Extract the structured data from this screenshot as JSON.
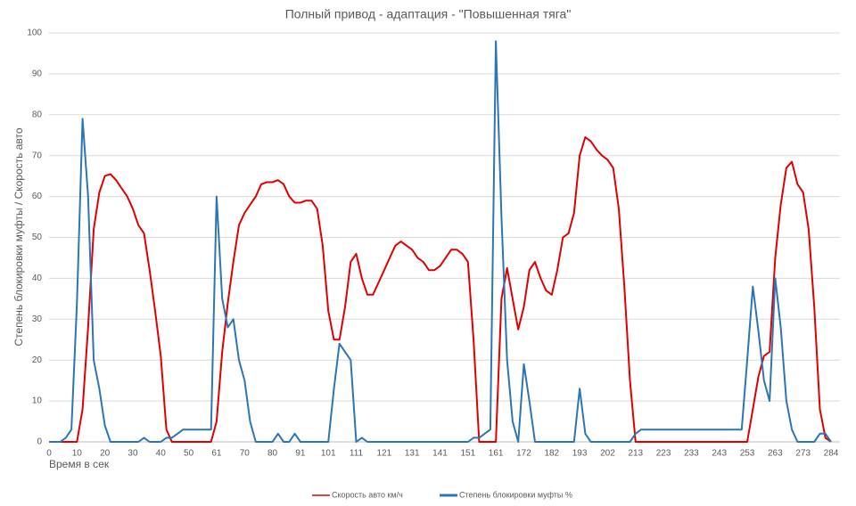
{
  "chart_data": {
    "type": "line",
    "title": "Полный привод - адаптация - \"Повышенная тяга\"",
    "x_label": "Время в сек",
    "y_label": "Степень блокировки муфты / Скорость авто",
    "categories": [
      0,
      null,
      null,
      null,
      null,
      10,
      null,
      null,
      null,
      null,
      20,
      null,
      null,
      null,
      null,
      30,
      null,
      null,
      null,
      null,
      40,
      null,
      null,
      null,
      null,
      50,
      null,
      null,
      null,
      null,
      61,
      null,
      null,
      null,
      null,
      70,
      null,
      null,
      null,
      null,
      80,
      null,
      null,
      null,
      null,
      91,
      null,
      null,
      null,
      null,
      101,
      null,
      null,
      null,
      null,
      111,
      null,
      null,
      null,
      null,
      121,
      null,
      null,
      null,
      null,
      131,
      null,
      null,
      null,
      null,
      141,
      null,
      null,
      null,
      null,
      151,
      null,
      null,
      null,
      null,
      161,
      null,
      null,
      null,
      null,
      172,
      null,
      null,
      null,
      null,
      182,
      null,
      null,
      null,
      null,
      193,
      null,
      null,
      null,
      null,
      202,
      null,
      null,
      null,
      null,
      213,
      null,
      null,
      null,
      null,
      223,
      null,
      null,
      null,
      null,
      233,
      null,
      null,
      null,
      null,
      243,
      null,
      null,
      null,
      null,
      253,
      null,
      null,
      null,
      null,
      263,
      null,
      null,
      null,
      null,
      273,
      null,
      null,
      null,
      null,
      284
    ],
    "series": [
      {
        "name": "Скорость авто км/ч",
        "color": "#e00000",
        "values": [
          0,
          0,
          0,
          0,
          0,
          0,
          8,
          28,
          52,
          61,
          65,
          65.5,
          64,
          62,
          60,
          57,
          53,
          51,
          42,
          32,
          21,
          3,
          0,
          0,
          0,
          0,
          0,
          0,
          0,
          0,
          5,
          22,
          34,
          44,
          53,
          56,
          58,
          60,
          63,
          63.5,
          63.5,
          64,
          63,
          60,
          58.5,
          58.5,
          59,
          59,
          57,
          48,
          32,
          25,
          25,
          33,
          44,
          46,
          40,
          36,
          36,
          39,
          42,
          45,
          48,
          49,
          48,
          47,
          45,
          44,
          42,
          42,
          43,
          45,
          47,
          47,
          46,
          44,
          25,
          0,
          0,
          0,
          0,
          35,
          42.5,
          35,
          27.5,
          33,
          42,
          44,
          40,
          37,
          36,
          42,
          50,
          51,
          56,
          70,
          74.5,
          73.5,
          71.5,
          70,
          69,
          67,
          57,
          38,
          15,
          0,
          0,
          0,
          0,
          0,
          0,
          0,
          0,
          0,
          0,
          0,
          0,
          0,
          0,
          0,
          0,
          0,
          0,
          0,
          0,
          0,
          8,
          16,
          21,
          22,
          45,
          58,
          67,
          68.5,
          63,
          61,
          52,
          33,
          8,
          1,
          0
        ]
      },
      {
        "name": "Степень блокировки муфты %",
        "color": "#2e75b6",
        "values": [
          0,
          0,
          0,
          1,
          3,
          34,
          79,
          60,
          20,
          13,
          4,
          0,
          0,
          0,
          0,
          0,
          0,
          1,
          0,
          0,
          0,
          1,
          1,
          2,
          3,
          3,
          3,
          3,
          3,
          3,
          60,
          35,
          28,
          30,
          20,
          15,
          5,
          0,
          0,
          0,
          0,
          2,
          0,
          0,
          2,
          0,
          0,
          0,
          0,
          0,
          0,
          13,
          24,
          22,
          20,
          0,
          1,
          0,
          0,
          0,
          0,
          0,
          0,
          0,
          0,
          0,
          0,
          0,
          0,
          0,
          0,
          0,
          0,
          0,
          0,
          0,
          1,
          1,
          2,
          3,
          98,
          55,
          20,
          5,
          0,
          19,
          10,
          0,
          0,
          0,
          0,
          0,
          0,
          0,
          0,
          13,
          2,
          0,
          0,
          0,
          0,
          0,
          0,
          0,
          0,
          2,
          3,
          3,
          3,
          3,
          3,
          3,
          3,
          3,
          3,
          3,
          3,
          3,
          3,
          3,
          3,
          3,
          3,
          3,
          3,
          20,
          38,
          27,
          15,
          10,
          40,
          28,
          10,
          3,
          0,
          0,
          0,
          0,
          2,
          2,
          0
        ]
      }
    ],
    "ylim": [
      0,
      100
    ],
    "yticks": [
      0,
      10,
      20,
      30,
      40,
      50,
      60,
      70,
      80,
      90,
      100
    ],
    "grid": true,
    "legend": "bottom"
  }
}
